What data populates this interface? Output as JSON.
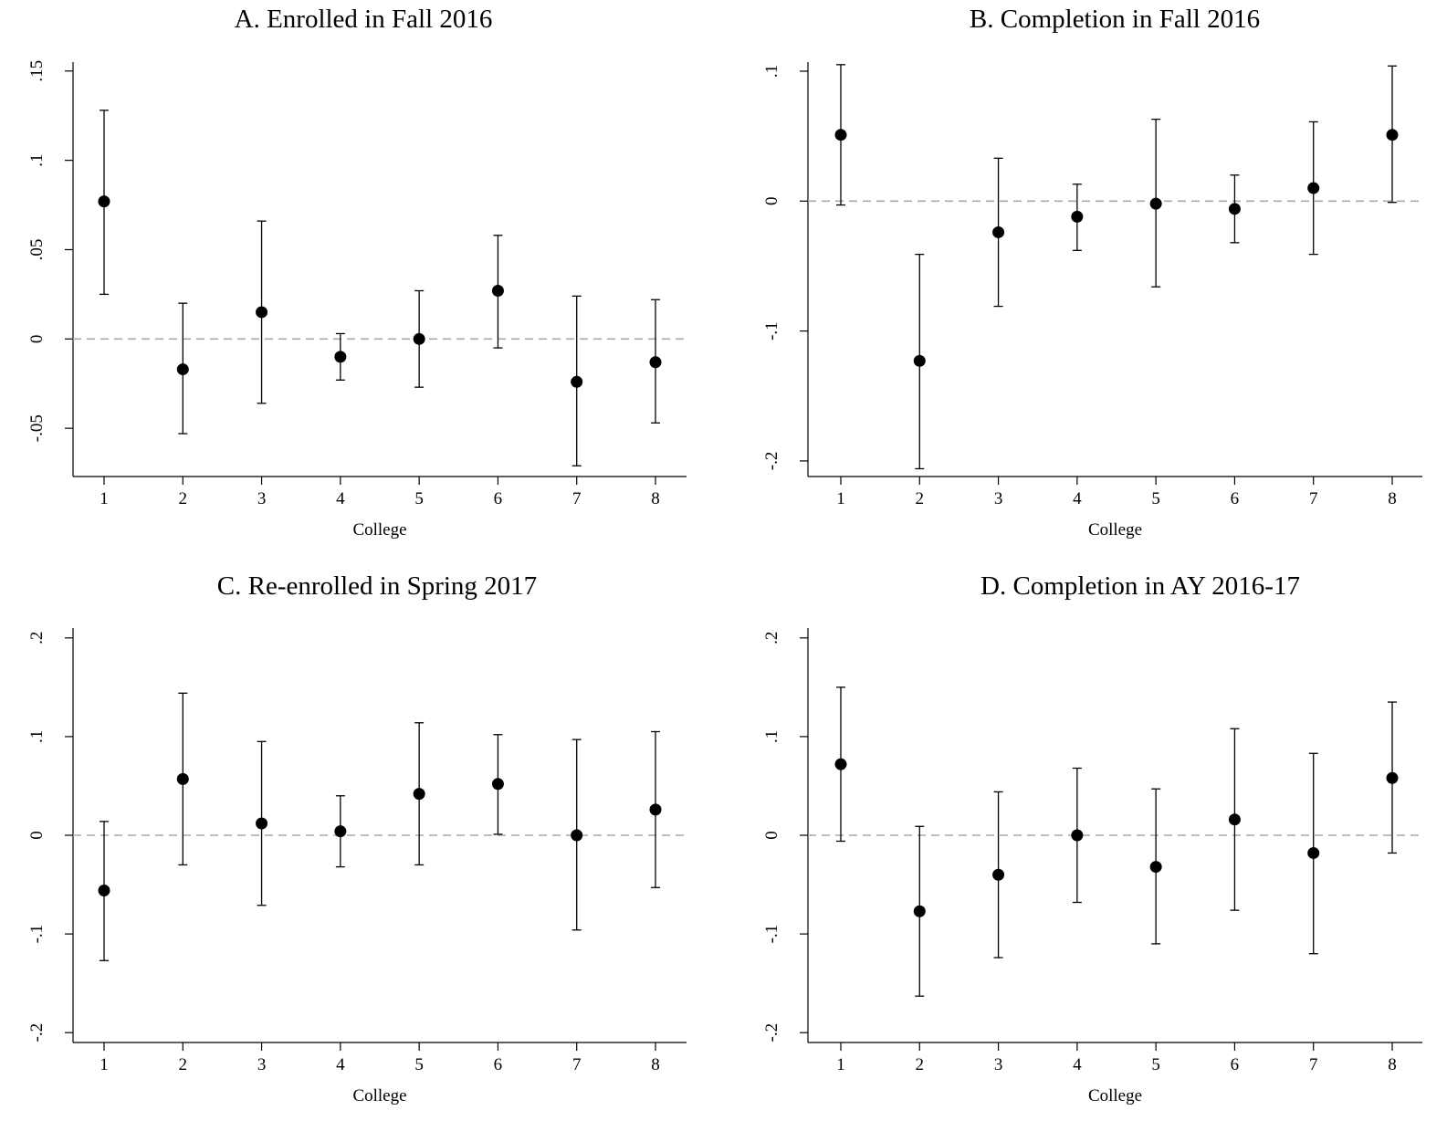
{
  "chart_data": [
    {
      "id": "A",
      "type": "scatter",
      "title": "A.  Enrolled in Fall 2016",
      "xlabel": "College",
      "ylabel": "",
      "x": [
        1,
        2,
        3,
        4,
        5,
        6,
        7,
        8
      ],
      "xticks": [
        "1",
        "2",
        "3",
        "4",
        "5",
        "6",
        "7",
        "8"
      ],
      "ylim": [
        -0.077,
        0.155
      ],
      "yticks": [
        -0.05,
        0,
        0.05,
        0.1,
        0.15
      ],
      "ytick_labels": [
        "-.05",
        "0",
        ".05",
        ".1",
        ".15"
      ],
      "estimate": [
        0.077,
        -0.017,
        0.015,
        -0.01,
        0.0,
        0.027,
        -0.024,
        -0.013
      ],
      "ci_low": [
        0.025,
        -0.053,
        -0.036,
        -0.023,
        -0.027,
        -0.005,
        -0.071,
        -0.047
      ],
      "ci_high": [
        0.128,
        0.02,
        0.066,
        0.003,
        0.027,
        0.058,
        0.024,
        0.022
      ],
      "reference_line": 0
    },
    {
      "id": "B",
      "type": "scatter",
      "title": "B. Completion in Fall 2016",
      "xlabel": "College",
      "ylabel": "",
      "x": [
        1,
        2,
        3,
        4,
        5,
        6,
        7,
        8
      ],
      "xticks": [
        "1",
        "2",
        "3",
        "4",
        "5",
        "6",
        "7",
        "8"
      ],
      "ylim": [
        -0.212,
        0.107
      ],
      "yticks": [
        -0.2,
        -0.1,
        0,
        0.1
      ],
      "ytick_labels": [
        "-.2",
        "-.1",
        "0",
        ".1"
      ],
      "estimate": [
        0.051,
        -0.123,
        -0.024,
        -0.012,
        -0.002,
        -0.006,
        0.01,
        0.051
      ],
      "ci_low": [
        -0.003,
        -0.206,
        -0.081,
        -0.038,
        -0.066,
        -0.032,
        -0.041,
        -0.001
      ],
      "ci_high": [
        0.105,
        -0.041,
        0.033,
        0.013,
        0.063,
        0.02,
        0.061,
        0.104
      ],
      "reference_line": 0
    },
    {
      "id": "C",
      "type": "scatter",
      "title": "C.  Re-enrolled in Spring 2017",
      "xlabel": "College",
      "ylabel": "",
      "x": [
        1,
        2,
        3,
        4,
        5,
        6,
        7,
        8
      ],
      "xticks": [
        "1",
        "2",
        "3",
        "4",
        "5",
        "6",
        "7",
        "8"
      ],
      "ylim": [
        -0.21,
        0.21
      ],
      "yticks": [
        -0.2,
        -0.1,
        0,
        0.1,
        0.2
      ],
      "ytick_labels": [
        "-.2",
        "-.1",
        "0",
        ".1",
        ".2"
      ],
      "estimate": [
        -0.056,
        0.057,
        0.012,
        0.004,
        0.042,
        0.052,
        0.0,
        0.026
      ],
      "ci_low": [
        -0.127,
        -0.03,
        -0.071,
        -0.032,
        -0.03,
        0.001,
        -0.096,
        -0.053
      ],
      "ci_high": [
        0.014,
        0.144,
        0.095,
        0.04,
        0.114,
        0.102,
        0.097,
        0.105
      ],
      "reference_line": 0
    },
    {
      "id": "D",
      "type": "scatter",
      "title": "D. Completion in AY 2016-17",
      "xlabel": "College",
      "ylabel": "",
      "x": [
        1,
        2,
        3,
        4,
        5,
        6,
        7,
        8
      ],
      "xticks": [
        "1",
        "2",
        "3",
        "4",
        "5",
        "6",
        "7",
        "8"
      ],
      "ylim": [
        -0.21,
        0.21
      ],
      "yticks": [
        -0.2,
        -0.1,
        0,
        0.1,
        0.2
      ],
      "ytick_labels": [
        "-.2",
        "-.1",
        "0",
        ".1",
        ".2"
      ],
      "estimate": [
        0.072,
        -0.077,
        -0.04,
        0.0,
        -0.032,
        0.016,
        -0.018,
        0.058
      ],
      "ci_low": [
        -0.006,
        -0.163,
        -0.124,
        -0.068,
        -0.11,
        -0.076,
        -0.12,
        -0.018
      ],
      "ci_high": [
        0.15,
        0.009,
        0.044,
        0.068,
        0.047,
        0.108,
        0.083,
        0.135
      ],
      "reference_line": 0
    }
  ]
}
